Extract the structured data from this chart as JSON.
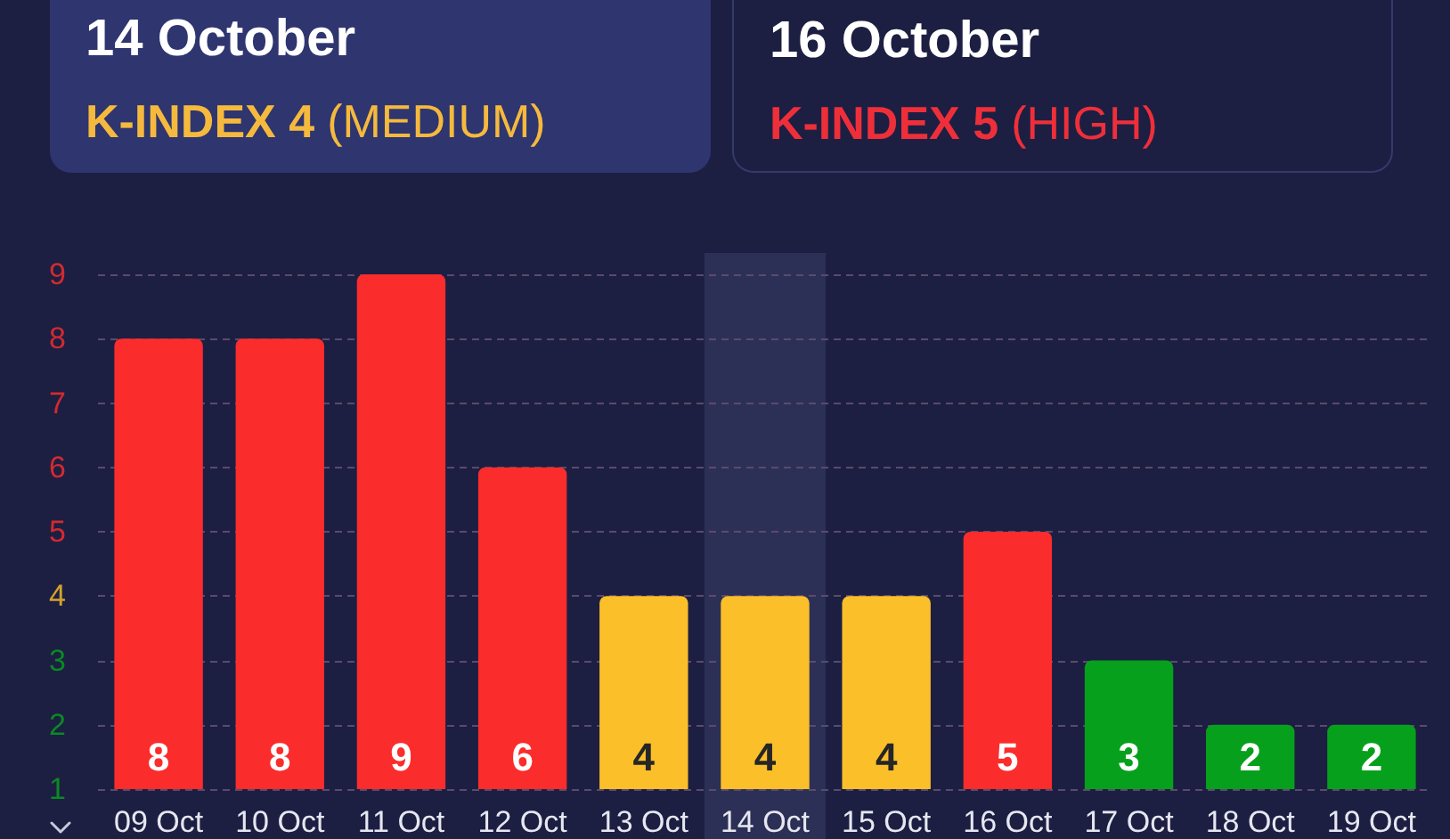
{
  "chart_data": {
    "type": "bar",
    "annotations": [
      "14 October",
      "K-INDEX 4",
      "(MEDIUM)",
      "16 October",
      "K-INDEX 5",
      "(HIGH)"
    ],
    "categories": [
      "09 Oct",
      "10 Oct",
      "11 Oct",
      "12 Oct",
      "13 Oct",
      "14 Oct",
      "15 Oct",
      "16 Oct",
      "17 Oct",
      "18 Oct",
      "19 Oct"
    ],
    "values": [
      8,
      8,
      9,
      6,
      4,
      4,
      4,
      5,
      3,
      2,
      2
    ],
    "colors": [
      "#fb2c2c",
      "#fb2c2c",
      "#fb2c2c",
      "#fb2c2c",
      "#fbbf2a",
      "#fbbf2a",
      "#fbbf2a",
      "#fb2c2c",
      "#07a01c",
      "#07a01c",
      "#07a01c"
    ],
    "ylim": [
      1,
      9
    ],
    "yticks": [
      1,
      2,
      3,
      4,
      5,
      6,
      7,
      8,
      9
    ],
    "grid": "y",
    "data_labels": true,
    "bands": [
      {
        "axis": "x",
        "from": "14 Oct",
        "to": "14 Oct",
        "color": "#2c3056"
      }
    ]
  }
}
